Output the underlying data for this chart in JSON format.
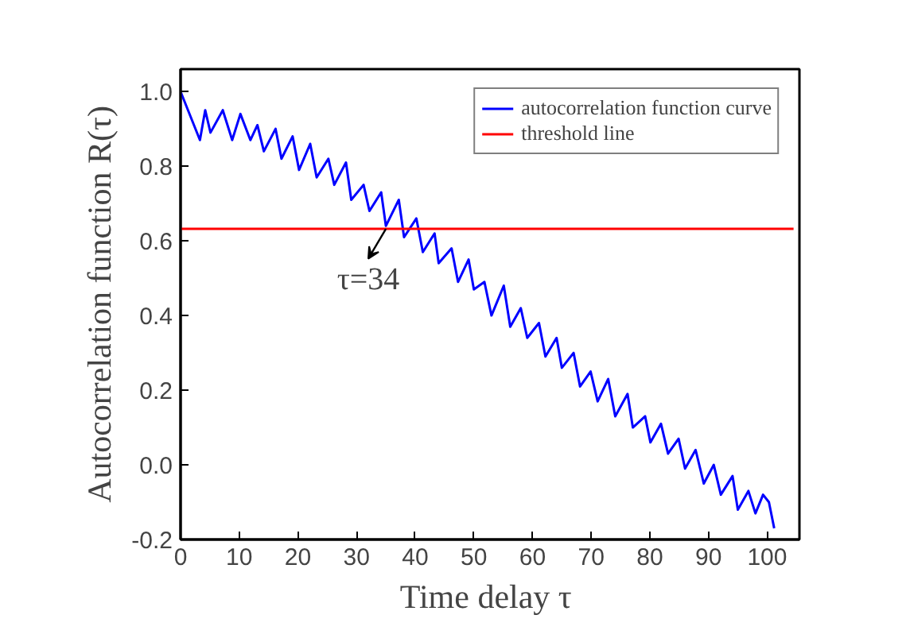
{
  "chart_data": {
    "type": "line",
    "xlabel": "Time delay  τ",
    "ylabel": "Autocorrelation function R(τ)",
    "xlim": [
      0,
      105.5
    ],
    "ylim": [
      -0.2,
      1.06
    ],
    "xticks": [
      0,
      10,
      20,
      30,
      40,
      50,
      60,
      70,
      80,
      90,
      100
    ],
    "yticks": [
      {
        "value": -0.2,
        "label": "-0.2"
      },
      {
        "value": 0,
        "label": "0.0"
      },
      {
        "value": 0.2,
        "label": "0.2"
      },
      {
        "value": 0.4,
        "label": "0.4"
      },
      {
        "value": 0.6,
        "label": "0.6"
      },
      {
        "value": 0.8,
        "label": "0.8"
      },
      {
        "value": 1.0,
        "label": "1.0"
      }
    ],
    "grid": false,
    "legend": "top right",
    "line_style": "solid",
    "series": [
      {
        "name": "autocorrelation function curve",
        "color": "#0000ff",
        "x": [
          0,
          3.3,
          4.2,
          5.1,
          7.2,
          8.8,
          10.2,
          11.9,
          13.1,
          14.2,
          16.2,
          17.2,
          19.1,
          20.2,
          22.1,
          23.2,
          25.2,
          26.2,
          28.2,
          29.1,
          31.2,
          32.2,
          34.2,
          35.0,
          37.2,
          38.1,
          40.2,
          41.3,
          43.3,
          44.0,
          46.2,
          47.3,
          49.1,
          50.0,
          51.8,
          53.0,
          55.1,
          56.2,
          58.0,
          59.1,
          61.1,
          62.2,
          64.1,
          65.0,
          67.0,
          68.1,
          69.9,
          71.1,
          72.9,
          74.1,
          76.2,
          77.1,
          79.2,
          80.1,
          81.9,
          83.1,
          84.9,
          86.0,
          87.8,
          89.2,
          90.9,
          92.1,
          94.1,
          95.0,
          96.8,
          98.0,
          99.3,
          100.3,
          101.2
        ],
        "values": [
          1.0,
          0.87,
          0.95,
          0.89,
          0.95,
          0.87,
          0.94,
          0.87,
          0.91,
          0.84,
          0.9,
          0.82,
          0.88,
          0.79,
          0.86,
          0.77,
          0.82,
          0.75,
          0.81,
          0.71,
          0.75,
          0.68,
          0.73,
          0.64,
          0.71,
          0.61,
          0.66,
          0.57,
          0.62,
          0.54,
          0.58,
          0.49,
          0.55,
          0.47,
          0.49,
          0.4,
          0.48,
          0.37,
          0.42,
          0.34,
          0.38,
          0.29,
          0.34,
          0.26,
          0.3,
          0.21,
          0.25,
          0.17,
          0.23,
          0.13,
          0.19,
          0.1,
          0.13,
          0.06,
          0.11,
          0.03,
          0.07,
          -0.01,
          0.04,
          -0.05,
          0.0,
          -0.08,
          -0.03,
          -0.12,
          -0.07,
          -0.13,
          -0.08,
          -0.1,
          -0.17
        ]
      },
      {
        "name": "threshold line",
        "color": "#ff0000",
        "x": [
          0,
          104.5
        ],
        "values": [
          0.632,
          0.632
        ]
      }
    ],
    "annotations": [
      {
        "text": "τ=34",
        "x": 35,
        "y": 0.632
      }
    ]
  }
}
